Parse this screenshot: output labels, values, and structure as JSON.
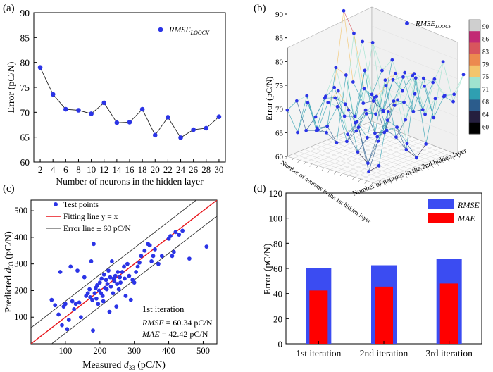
{
  "chart_data": [
    {
      "panel": "(a)",
      "type": "line",
      "xlabel": "Number of neurons in the hidden layer",
      "ylabel": "Error (pC/N)",
      "legend": "RMSE",
      "legend_sub": "LOOCV",
      "legend_position": "top-right",
      "ylim": [
        60,
        90
      ],
      "yticks": [
        60,
        65,
        70,
        75,
        80,
        85,
        90
      ],
      "x": [
        2,
        4,
        6,
        8,
        10,
        12,
        14,
        16,
        18,
        20,
        22,
        24,
        26,
        28,
        30
      ],
      "y": [
        79.0,
        73.6,
        70.6,
        70.4,
        69.7,
        71.9,
        67.9,
        68.0,
        70.6,
        65.4,
        69.0,
        64.9,
        66.5,
        66.8,
        69.1
      ]
    },
    {
      "panel": "(b)",
      "type": "scatter3d",
      "xlabel": "Number of neurons in the 1st hidden layer",
      "ylabel": "Number of neurons in the 2nd hidden layer",
      "zlabel": "Error (pC/N)",
      "zticks": [
        60,
        65,
        70,
        75,
        80,
        85,
        90
      ],
      "legend": "RMSE",
      "legend_sub": "LOOCV",
      "colorbar_ticks": [
        90,
        86,
        83,
        79,
        75,
        71,
        68,
        64,
        60
      ],
      "colorbar_colors": [
        "#cfcfcf",
        "#c22a74",
        "#d8555d",
        "#ec8a4f",
        "#f3c56c",
        "#9fe3cf",
        "#2f9fb1",
        "#2b5c8c",
        "#251f3e",
        "#000000"
      ]
    },
    {
      "panel": "(c)",
      "type": "scatter",
      "xlabel": "Measured d33 (pC/N)",
      "ylabel": "Predicted d33 (pC/N)",
      "xlim": [
        0,
        540
      ],
      "ylim": [
        0,
        540
      ],
      "xticks": [
        100,
        200,
        300,
        400,
        500
      ],
      "yticks": [
        100,
        200,
        300,
        400,
        500
      ],
      "legend": [
        "Test points",
        "Fitting line y = x",
        "Error line ± 60 pC/N"
      ],
      "annotation": {
        "iteration": "1st iteration",
        "rmse_label": "RMSE",
        "rmse_value": " = 60.34 pC/N",
        "mae_label": "MAE",
        "mae_value": " = 42.42 pC/N"
      },
      "points": [
        [
          60,
          165
        ],
        [
          70,
          145
        ],
        [
          80,
          110
        ],
        [
          85,
          270
        ],
        [
          90,
          70
        ],
        [
          95,
          140
        ],
        [
          100,
          150
        ],
        [
          105,
          55
        ],
        [
          110,
          90
        ],
        [
          115,
          290
        ],
        [
          120,
          160
        ],
        [
          125,
          130
        ],
        [
          130,
          150
        ],
        [
          135,
          275
        ],
        [
          140,
          155
        ],
        [
          145,
          100
        ],
        [
          155,
          250
        ],
        [
          160,
          180
        ],
        [
          165,
          190
        ],
        [
          170,
          205
        ],
        [
          172,
          175
        ],
        [
          175,
          310
        ],
        [
          178,
          165
        ],
        [
          180,
          50
        ],
        [
          182,
          375
        ],
        [
          185,
          190
        ],
        [
          188,
          210
        ],
        [
          190,
          170
        ],
        [
          192,
          220
        ],
        [
          195,
          150
        ],
        [
          198,
          200
        ],
        [
          200,
          230
        ],
        [
          203,
          190
        ],
        [
          205,
          245
        ],
        [
          208,
          180
        ],
        [
          210,
          160
        ],
        [
          212,
          260
        ],
        [
          215,
          210
        ],
        [
          218,
          240
        ],
        [
          220,
          205
        ],
        [
          222,
          225
        ],
        [
          225,
          275
        ],
        [
          228,
          120
        ],
        [
          230,
          250
        ],
        [
          232,
          215
        ],
        [
          235,
          310
        ],
        [
          238,
          190
        ],
        [
          240,
          245
        ],
        [
          242,
          235
        ],
        [
          245,
          255
        ],
        [
          248,
          140
        ],
        [
          250,
          225
        ],
        [
          252,
          270
        ],
        [
          255,
          205
        ],
        [
          258,
          250
        ],
        [
          260,
          230
        ],
        [
          265,
          270
        ],
        [
          270,
          290
        ],
        [
          272,
          245
        ],
        [
          275,
          180
        ],
        [
          280,
          300
        ],
        [
          285,
          255
        ],
        [
          290,
          165
        ],
        [
          295,
          240
        ],
        [
          300,
          230
        ],
        [
          305,
          270
        ],
        [
          310,
          290
        ],
        [
          315,
          305
        ],
        [
          320,
          330
        ],
        [
          330,
          350
        ],
        [
          340,
          375
        ],
        [
          345,
          370
        ],
        [
          350,
          310
        ],
        [
          355,
          330
        ],
        [
          360,
          355
        ],
        [
          370,
          300
        ],
        [
          380,
          330
        ],
        [
          400,
          395
        ],
        [
          405,
          405
        ],
        [
          410,
          330
        ],
        [
          415,
          345
        ],
        [
          420,
          420
        ],
        [
          430,
          410
        ],
        [
          440,
          425
        ],
        [
          460,
          320
        ],
        [
          510,
          365
        ]
      ]
    },
    {
      "panel": "(d)",
      "type": "bar",
      "ylabel": "Error (pC/N)",
      "ylim": [
        0,
        120
      ],
      "yticks": [
        0,
        20,
        40,
        60,
        80,
        100,
        120
      ],
      "categories": [
        "1st iteration",
        "2nd iteration",
        "3rd iteration"
      ],
      "series": [
        {
          "name": "RMSE",
          "color": "#3b4cf2",
          "values": [
            60.34,
            62.5,
            67.5
          ]
        },
        {
          "name": "MAE",
          "color": "#ff0000",
          "values": [
            42.42,
            45.5,
            48.0
          ]
        }
      ],
      "legend_position": "top-right"
    }
  ],
  "labels": {
    "a": "(a)",
    "b": "(b)",
    "c": "(c)",
    "d": "(d)"
  }
}
